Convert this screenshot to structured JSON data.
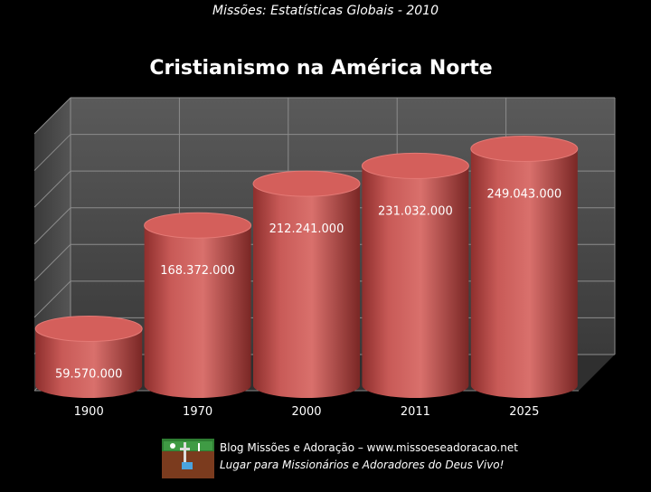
{
  "header": {
    "caption": "Missões: Estatísticas Globais - 2010"
  },
  "colors": {
    "bar": "#c0504d",
    "bar_top": "#d9676a",
    "wall": "#4a4a4a",
    "grid": "#8c8c8c",
    "background": "#000000"
  },
  "chart_data": {
    "type": "bar",
    "style": "3d-cylinder",
    "title": "Cristianismo na América Norte",
    "categories": [
      "1900",
      "1970",
      "2000",
      "2011",
      "2025"
    ],
    "values": [
      59570000,
      168372000,
      212241000,
      231032000,
      249043000
    ],
    "value_labels": [
      "59.570.000",
      "168.372.000",
      "212.241.000",
      "231.032.000",
      "249.043.000"
    ],
    "xlabel": "",
    "ylabel": "",
    "ylim": [
      0,
      280000000
    ],
    "grid": true,
    "legend": "none"
  },
  "footer": {
    "logo_icon": "blog-logo-icon",
    "line1": "Blog Missões e Adoração – www.missoeseadoracao.net",
    "line2": "Lugar para Missionários e Adoradores do Deus Vivo!"
  }
}
